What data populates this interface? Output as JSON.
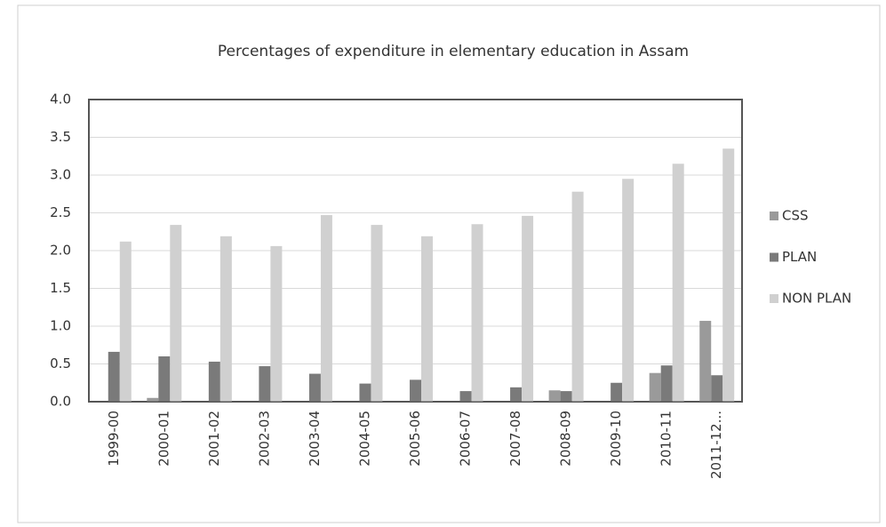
{
  "chart_data": {
    "type": "bar",
    "title": "Percentages of expenditure in elementary education in Assam",
    "categories": [
      "1999-00",
      "2000-01",
      "2001-02",
      "2002-03",
      "2003-04",
      "2004-05",
      "2005-06",
      "2006-07",
      "2007-08",
      "2008-09",
      "2009-10",
      "2010-11",
      "2011-12..."
    ],
    "series": [
      {
        "name": "CSS",
        "color": "#9a9a9a",
        "values": [
          0,
          0.05,
          0,
          0,
          0,
          0,
          0,
          0,
          0,
          0.15,
          0,
          0.38,
          1.07
        ]
      },
      {
        "name": "PLAN",
        "color": "#7a7a7a",
        "values": [
          0.66,
          0.6,
          0.53,
          0.47,
          0.37,
          0.24,
          0.29,
          0.14,
          0.19,
          0.14,
          0.25,
          0.48,
          0.35
        ]
      },
      {
        "name": "NON PLAN",
        "color": "#d0d0d0",
        "values": [
          2.12,
          2.34,
          2.19,
          2.06,
          2.47,
          2.34,
          2.19,
          2.35,
          2.46,
          2.78,
          2.95,
          3.15,
          3.35
        ]
      }
    ],
    "ylim": [
      0,
      4
    ],
    "yticks": [
      {
        "value": 0,
        "label": "0.0"
      },
      0.5,
      {
        "value": 1,
        "label": "1.0"
      },
      1.5,
      {
        "value": 2,
        "label": "2.0"
      },
      2.5,
      {
        "value": 3,
        "label": "3.0"
      },
      3.5,
      {
        "value": 4,
        "label": "4.0"
      }
    ],
    "grid": true,
    "legend": "right"
  }
}
